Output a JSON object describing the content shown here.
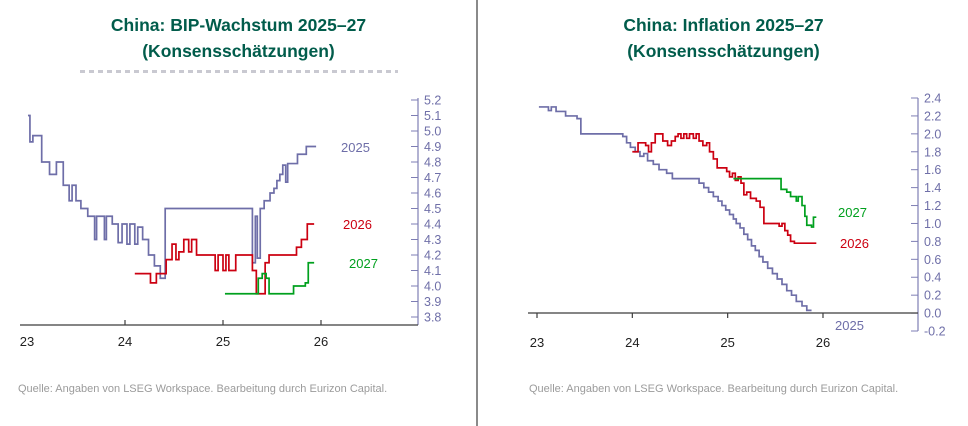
{
  "panels": [
    {
      "title_line1": "China: BIP-Wachstum 2025–27",
      "title_line2": "(Konsensschätzungen)",
      "source": "Quelle: Angaben von LSEG Workspace. Bearbeitung durch Eurizon Capital."
    },
    {
      "title_line1": "China: Inflation 2025–27",
      "title_line2": "(Konsensschätzungen)",
      "source": "Quelle: Angaben von LSEG Workspace. Bearbeitung durch Eurizon Capital."
    }
  ],
  "colors": {
    "title_green": "#015C4B",
    "axis_purple": "#7e7eb4",
    "axis_label_purple": "#6f6fa8",
    "x_axis_dark": "#3c3c3c",
    "x_label_dark": "#1f1f1f",
    "source_gray": "#9b9b9b",
    "divider_gray": "#8a8a8a"
  },
  "chart_data": [
    {
      "type": "line",
      "subtype": "step",
      "title": "China: BIP-Wachstum 2025–27",
      "subtitle": "(Konsensschätzungen)",
      "xlabel": "",
      "ylabel": "",
      "xlim": [
        23,
        27
      ],
      "ylim": [
        3.8,
        5.2
      ],
      "x_tick_labels": [
        "23",
        "24",
        "25",
        "26"
      ],
      "y_tick_labels": [
        "5.2",
        "5.1",
        "5.0",
        "4.9",
        "4.8",
        "4.7",
        "4.6",
        "4.5",
        "4.4",
        "4.3",
        "4.2",
        "4.1",
        "4.0",
        "3.9",
        "3.8"
      ],
      "grid": false,
      "legend_position": "inline-right-annotations",
      "series": [
        {
          "name": "2025",
          "color": "#6E6EA8",
          "points": [
            [
              23.01,
              5.1
            ],
            [
              23.03,
              4.93
            ],
            [
              23.06,
              4.97
            ],
            [
              23.15,
              4.8
            ],
            [
              23.23,
              4.72
            ],
            [
              23.3,
              4.8
            ],
            [
              23.37,
              4.65
            ],
            [
              23.43,
              4.55
            ],
            [
              23.46,
              4.65
            ],
            [
              23.5,
              4.55
            ],
            [
              23.55,
              4.5
            ],
            [
              23.62,
              4.45
            ],
            [
              23.69,
              4.3
            ],
            [
              23.71,
              4.45
            ],
            [
              23.79,
              4.3
            ],
            [
              23.81,
              4.45
            ],
            [
              23.87,
              4.4
            ],
            [
              23.93,
              4.28
            ],
            [
              23.97,
              4.4
            ],
            [
              24.02,
              4.27
            ],
            [
              24.05,
              4.4
            ],
            [
              24.1,
              4.27
            ],
            [
              24.13,
              4.38
            ],
            [
              24.18,
              4.3
            ],
            [
              24.24,
              4.2
            ],
            [
              24.3,
              4.13
            ],
            [
              24.36,
              4.05
            ],
            [
              24.41,
              4.5
            ],
            [
              25.3,
              4.15
            ],
            [
              25.33,
              4.45
            ],
            [
              25.35,
              4.18
            ],
            [
              25.38,
              4.5
            ],
            [
              25.42,
              4.55
            ],
            [
              25.48,
              4.6
            ],
            [
              25.52,
              4.63
            ],
            [
              25.55,
              4.68
            ],
            [
              25.58,
              4.72
            ],
            [
              25.61,
              4.78
            ],
            [
              25.64,
              4.67
            ],
            [
              25.66,
              4.79
            ],
            [
              25.76,
              4.85
            ],
            [
              25.85,
              4.9
            ],
            [
              25.95,
              4.9
            ]
          ]
        },
        {
          "name": "2026",
          "color": "#CC0011",
          "points": [
            [
              24.1,
              4.08
            ],
            [
              24.26,
              4.02
            ],
            [
              24.32,
              4.08
            ],
            [
              24.42,
              4.17
            ],
            [
              24.48,
              4.27
            ],
            [
              24.52,
              4.17
            ],
            [
              24.55,
              4.22
            ],
            [
              24.6,
              4.3
            ],
            [
              24.65,
              4.22
            ],
            [
              24.68,
              4.3
            ],
            [
              24.73,
              4.2
            ],
            [
              24.92,
              4.1
            ],
            [
              24.95,
              4.2
            ],
            [
              25.0,
              4.1
            ],
            [
              25.03,
              4.2
            ],
            [
              25.06,
              4.1
            ],
            [
              25.13,
              4.2
            ],
            [
              25.3,
              4.1
            ],
            [
              25.34,
              3.95
            ],
            [
              25.43,
              4.15
            ],
            [
              25.47,
              4.2
            ],
            [
              25.75,
              4.25
            ],
            [
              25.8,
              4.3
            ],
            [
              25.86,
              4.4
            ],
            [
              25.93,
              4.4
            ]
          ]
        },
        {
          "name": "2027",
          "color": "#00A01E",
          "points": [
            [
              25.02,
              3.95
            ],
            [
              25.36,
              4.05
            ],
            [
              25.4,
              4.08
            ],
            [
              25.44,
              4.05
            ],
            [
              25.47,
              3.95
            ],
            [
              25.72,
              4.0
            ],
            [
              25.84,
              4.02
            ],
            [
              25.87,
              4.15
            ],
            [
              25.93,
              4.15
            ]
          ]
        }
      ]
    },
    {
      "type": "line",
      "subtype": "step",
      "title": "China: Inflation 2025–27",
      "subtitle": "(Konsensschätzungen)",
      "xlabel": "",
      "ylabel": "",
      "xlim": [
        23,
        27
      ],
      "ylim": [
        -0.2,
        2.4
      ],
      "x_tick_labels": [
        "23",
        "24",
        "25",
        "26"
      ],
      "y_tick_labels": [
        "2.4",
        "2.2",
        "2.0",
        "1.8",
        "1.6",
        "1.4",
        "1.2",
        "1.0",
        "0.8",
        "0.6",
        "0.4",
        "0.2",
        "0.0",
        "-0.2"
      ],
      "grid": false,
      "legend_position": "inline-right-annotations",
      "series": [
        {
          "name": "2025",
          "color": "#6E6EA8",
          "points": [
            [
              23.02,
              2.3
            ],
            [
              23.12,
              2.26
            ],
            [
              23.15,
              2.3
            ],
            [
              23.2,
              2.25
            ],
            [
              23.3,
              2.2
            ],
            [
              23.42,
              2.17
            ],
            [
              23.46,
              2.0
            ],
            [
              23.9,
              1.97
            ],
            [
              23.94,
              1.9
            ],
            [
              23.98,
              1.85
            ],
            [
              24.03,
              1.8
            ],
            [
              24.08,
              1.75
            ],
            [
              24.12,
              1.78
            ],
            [
              24.16,
              1.7
            ],
            [
              24.22,
              1.66
            ],
            [
              24.28,
              1.6
            ],
            [
              24.36,
              1.56
            ],
            [
              24.42,
              1.5
            ],
            [
              24.7,
              1.45
            ],
            [
              24.75,
              1.4
            ],
            [
              24.8,
              1.35
            ],
            [
              24.85,
              1.3
            ],
            [
              24.9,
              1.25
            ],
            [
              24.94,
              1.2
            ],
            [
              24.98,
              1.15
            ],
            [
              25.02,
              1.1
            ],
            [
              25.06,
              1.05
            ],
            [
              25.09,
              1.0
            ],
            [
              25.13,
              0.95
            ],
            [
              25.17,
              0.88
            ],
            [
              25.21,
              0.82
            ],
            [
              25.25,
              0.75
            ],
            [
              25.29,
              0.7
            ],
            [
              25.33,
              0.63
            ],
            [
              25.37,
              0.57
            ],
            [
              25.42,
              0.5
            ],
            [
              25.47,
              0.44
            ],
            [
              25.52,
              0.38
            ],
            [
              25.57,
              0.32
            ],
            [
              25.62,
              0.25
            ],
            [
              25.67,
              0.2
            ],
            [
              25.72,
              0.13
            ],
            [
              25.78,
              0.08
            ],
            [
              25.83,
              0.03
            ],
            [
              25.88,
              0.03
            ]
          ]
        },
        {
          "name": "2026",
          "color": "#CC0011",
          "points": [
            [
              24.0,
              1.8
            ],
            [
              24.06,
              1.9
            ],
            [
              24.14,
              1.87
            ],
            [
              24.17,
              1.8
            ],
            [
              24.2,
              1.9
            ],
            [
              24.24,
              2.0
            ],
            [
              24.32,
              1.92
            ],
            [
              24.37,
              1.87
            ],
            [
              24.41,
              1.92
            ],
            [
              24.45,
              1.97
            ],
            [
              24.48,
              2.0
            ],
            [
              24.51,
              1.95
            ],
            [
              24.54,
              2.0
            ],
            [
              24.57,
              1.95
            ],
            [
              24.6,
              2.0
            ],
            [
              24.64,
              1.95
            ],
            [
              24.67,
              2.0
            ],
            [
              24.7,
              1.92
            ],
            [
              24.74,
              1.87
            ],
            [
              24.78,
              1.9
            ],
            [
              24.81,
              1.8
            ],
            [
              24.85,
              1.72
            ],
            [
              24.89,
              1.62
            ],
            [
              24.99,
              1.58
            ],
            [
              25.02,
              1.52
            ],
            [
              25.05,
              1.56
            ],
            [
              25.08,
              1.48
            ],
            [
              25.11,
              1.52
            ],
            [
              25.14,
              1.45
            ],
            [
              25.17,
              1.32
            ],
            [
              25.2,
              1.35
            ],
            [
              25.24,
              1.28
            ],
            [
              25.3,
              1.25
            ],
            [
              25.34,
              1.18
            ],
            [
              25.38,
              1.0
            ],
            [
              25.54,
              0.97
            ],
            [
              25.57,
              1.0
            ],
            [
              25.6,
              0.92
            ],
            [
              25.63,
              0.87
            ],
            [
              25.66,
              0.8
            ],
            [
              25.7,
              0.78
            ],
            [
              25.93,
              0.78
            ]
          ]
        },
        {
          "name": "2027",
          "color": "#00A01E",
          "points": [
            [
              25.06,
              1.5
            ],
            [
              25.56,
              1.38
            ],
            [
              25.62,
              1.35
            ],
            [
              25.66,
              1.3
            ],
            [
              25.72,
              1.25
            ],
            [
              25.74,
              1.3
            ],
            [
              25.78,
              1.2
            ],
            [
              25.81,
              1.08
            ],
            [
              25.83,
              0.98
            ],
            [
              25.88,
              0.96
            ],
            [
              25.9,
              1.07
            ],
            [
              25.93,
              1.07
            ]
          ]
        }
      ]
    }
  ]
}
